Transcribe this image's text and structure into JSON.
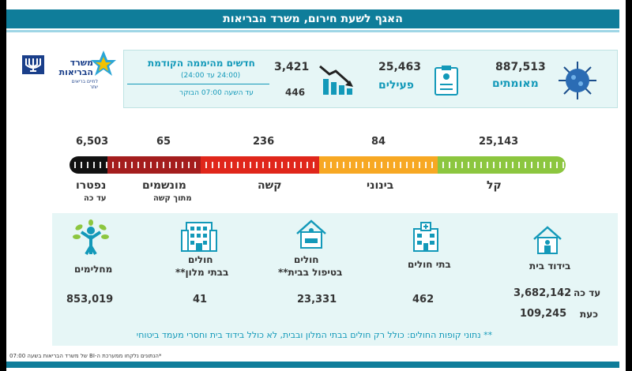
{
  "header": {
    "title": "האגף לשעת חירום, משרד הבריאות"
  },
  "logo": {
    "line1": "משרד",
    "line2": "הבריאות",
    "tagline": "לחיים בריאים יותר"
  },
  "top_stats": {
    "confirmed": {
      "value": "887,513",
      "label": "מאומתים"
    },
    "active": {
      "value": "25,463",
      "label": "פעילים"
    },
    "new_cases": {
      "value": "3,421",
      "label": "חדשים מהיממה הקודמת",
      "sublabel": "(24:00 עד 24:00)",
      "today_value": "446",
      "today_label": "עד השעה  07:00  הבוקר"
    }
  },
  "severity": {
    "mild": {
      "value": "25,143",
      "label": "קל"
    },
    "moderate": {
      "value": "84",
      "label": "בינוני"
    },
    "severe": {
      "value": "236",
      "label": "קשה"
    },
    "ventilated": {
      "value": "65",
      "label": "מונשמים",
      "sublabel": "מתוך קשה"
    },
    "deceased": {
      "value": "6,503",
      "label": "נפטרו",
      "sublabel": "עד כה"
    },
    "colors": {
      "mild": "#8cc63f",
      "moderate": "#f7a823",
      "severe": "#e0261b",
      "ventilated": "#a41d1d",
      "deceased": "#111111"
    }
  },
  "bottom": {
    "home_isolation": {
      "label": "בידוד בית",
      "so_far_label": "עד כה",
      "so_far_value": "3,682,142",
      "now_label": "כעת",
      "now_value": "109,245"
    },
    "hospitals": {
      "label": "בתי חולים",
      "value": "462"
    },
    "home_care": {
      "label1": "חולים",
      "label2": "בטיפול בבית**",
      "value": "23,331"
    },
    "hotels": {
      "label1": "חולים",
      "label2": "בבתי מלון**",
      "value": "41"
    },
    "recovered": {
      "label": "מחלימים",
      "value": "853,019"
    }
  },
  "note": "** נתוני קופות החולים: כולל רק חולים בבתי המלון ובבית, לא כולל בידוד בית וחסרי מעמד ביטוחי",
  "footer": "*הנתונים נלקחו ממערכת ה-BI של משרד הבריאות בשעה 07:00"
}
